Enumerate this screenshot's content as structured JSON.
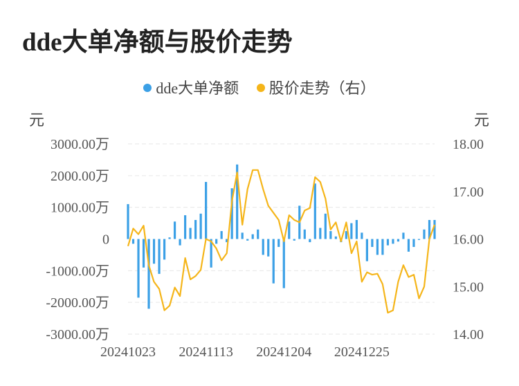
{
  "title": "dde大单净额与股价走势",
  "legend": [
    {
      "label": "dde大单净额",
      "color": "#3ba0e6"
    },
    {
      "label": "股价走势（右）",
      "color": "#f5b519"
    }
  ],
  "left_unit": "元",
  "right_unit": "元",
  "chart_data": {
    "type": "bar+line",
    "grid": true,
    "legend_position": "top-center",
    "x_tick_labels": [
      "20241023",
      "20241113",
      "20241204",
      "20241225"
    ],
    "x_tick_indices": [
      0,
      15,
      30,
      45
    ],
    "left_axis": {
      "ylim": [
        -3000,
        3000
      ],
      "ticks": [
        3000,
        2000,
        1000,
        0,
        -1000,
        -2000,
        -3000
      ],
      "tick_labels": [
        "3000.00万",
        "2000.00万",
        "1000.00万",
        "0",
        "-1000.00万",
        "-2000.00万",
        "-3000.00万"
      ]
    },
    "right_axis": {
      "ylim": [
        14.0,
        18.0
      ],
      "ticks": [
        18,
        17,
        16,
        15,
        14
      ],
      "tick_labels": [
        "18.00",
        "17.00",
        "16.00",
        "15.00",
        "14.00"
      ]
    },
    "series": [
      {
        "name": "dde大单净额",
        "type": "bar",
        "axis": "left",
        "unit": "万",
        "color": "#3ba0e6",
        "values": [
          1100,
          -150,
          -1850,
          -900,
          -2200,
          -780,
          -1100,
          -650,
          50,
          550,
          -200,
          750,
          350,
          600,
          800,
          1800,
          -900,
          -150,
          250,
          -100,
          1600,
          2350,
          200,
          -50,
          150,
          300,
          -500,
          -550,
          -1400,
          -250,
          -1550,
          550,
          -50,
          1050,
          300,
          -100,
          1750,
          350,
          800,
          250,
          80,
          -100,
          250,
          500,
          600,
          200,
          -700,
          -250,
          -500,
          -500,
          -200,
          -150,
          -80,
          200,
          -400,
          -250,
          -30,
          300,
          600,
          600
        ]
      },
      {
        "name": "股价走势（右）",
        "type": "line",
        "axis": "right",
        "unit": "元",
        "color": "#f5b519",
        "values": [
          15.85,
          16.22,
          16.1,
          16.28,
          15.45,
          15.1,
          14.95,
          14.5,
          14.6,
          14.98,
          14.8,
          15.6,
          15.15,
          15.22,
          15.35,
          16.0,
          15.95,
          15.8,
          15.55,
          15.7,
          16.8,
          17.4,
          16.3,
          17.05,
          17.45,
          17.45,
          17.05,
          16.7,
          16.55,
          16.4,
          15.95,
          16.5,
          16.4,
          16.35,
          16.6,
          16.65,
          17.3,
          17.2,
          16.85,
          16.2,
          16.35,
          15.95,
          16.35,
          15.7,
          15.95,
          15.1,
          15.3,
          15.25,
          15.27,
          15.05,
          14.45,
          14.5,
          15.1,
          15.45,
          15.2,
          15.25,
          14.75,
          15.0,
          16.0,
          16.3
        ]
      }
    ]
  }
}
